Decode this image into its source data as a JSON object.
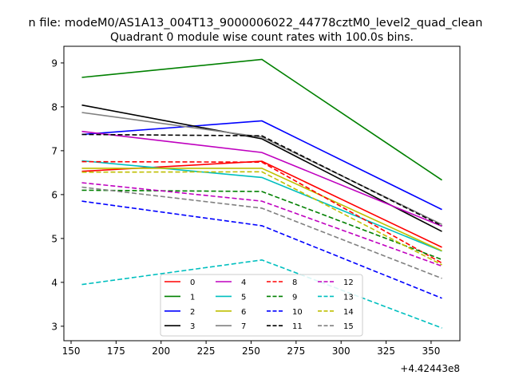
{
  "figure": {
    "suptitle": "n file: modeM0/AS1A13_004T13_9000006022_44778cztM0_level2_quad_clean",
    "title": "Quadrant 0 module wise count rates with 100.0s bins."
  },
  "chart_data": {
    "type": "line",
    "title": "Quadrant 0 module wise count rates with 100.0s bins.",
    "xlabel": "",
    "ylabel": "",
    "x_offset_label": "+4.42443e8",
    "x": [
      156,
      256,
      356
    ],
    "xlim": [
      146,
      366
    ],
    "ylim": [
      2.67,
      9.38
    ],
    "xticks": [
      150,
      175,
      200,
      225,
      250,
      275,
      300,
      325,
      350
    ],
    "yticks": [
      3,
      4,
      5,
      6,
      7,
      8,
      9
    ],
    "grid": false,
    "legend": {
      "placement": "lower center",
      "columns": 4
    },
    "series": [
      {
        "name": "0",
        "values": [
          6.53,
          6.76,
          4.8
        ],
        "color": "#ff0000",
        "dash": "solid"
      },
      {
        "name": "1",
        "values": [
          8.67,
          9.08,
          6.33
        ],
        "color": "#008000",
        "dash": "solid"
      },
      {
        "name": "2",
        "values": [
          7.37,
          7.68,
          5.66
        ],
        "color": "#0000ff",
        "dash": "solid"
      },
      {
        "name": "3",
        "values": [
          8.04,
          7.27,
          5.16
        ],
        "color": "#000000",
        "dash": "solid"
      },
      {
        "name": "4",
        "values": [
          7.44,
          6.96,
          5.28
        ],
        "color": "#bf00bf",
        "dash": "solid"
      },
      {
        "name": "5",
        "values": [
          6.77,
          6.39,
          4.71
        ],
        "color": "#00bfbf",
        "dash": "solid"
      },
      {
        "name": "6",
        "values": [
          6.6,
          6.6,
          4.72
        ],
        "color": "#bfbf00",
        "dash": "solid"
      },
      {
        "name": "7",
        "values": [
          7.87,
          7.31,
          5.32
        ],
        "color": "#808080",
        "dash": "solid"
      },
      {
        "name": "8",
        "values": [
          6.75,
          6.74,
          4.44
        ],
        "color": "#ff0000",
        "dash": "dashed"
      },
      {
        "name": "9",
        "values": [
          6.1,
          6.07,
          4.52
        ],
        "color": "#008000",
        "dash": "dashed"
      },
      {
        "name": "10",
        "values": [
          5.85,
          5.29,
          3.64
        ],
        "color": "#0000ff",
        "dash": "dashed"
      },
      {
        "name": "11",
        "values": [
          7.37,
          7.34,
          5.29
        ],
        "color": "#000000",
        "dash": "dashed"
      },
      {
        "name": "12",
        "values": [
          6.27,
          5.85,
          4.37
        ],
        "color": "#bf00bf",
        "dash": "dashed"
      },
      {
        "name": "13",
        "values": [
          3.95,
          4.51,
          2.96
        ],
        "color": "#00bfbf",
        "dash": "dashed"
      },
      {
        "name": "14",
        "values": [
          6.51,
          6.52,
          4.4
        ],
        "color": "#bfbf00",
        "dash": "dashed"
      },
      {
        "name": "15",
        "values": [
          6.17,
          5.69,
          4.09
        ],
        "color": "#808080",
        "dash": "dashed"
      }
    ]
  }
}
